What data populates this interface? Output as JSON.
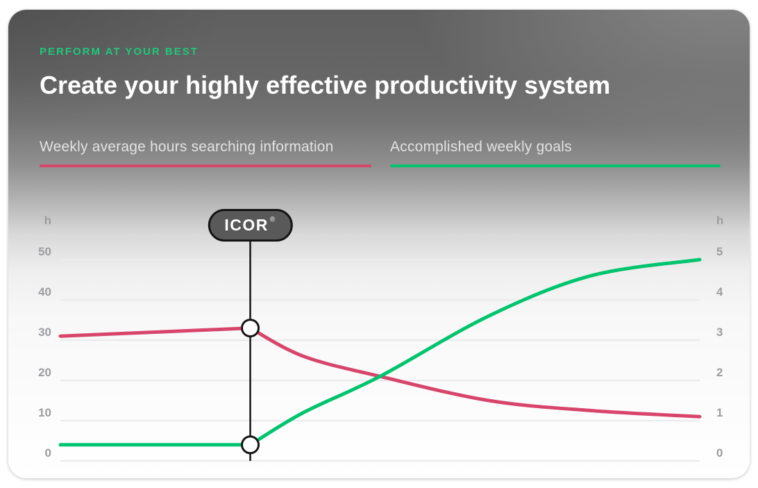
{
  "header": {
    "eyebrow": "PERFORM AT YOUR BEST",
    "title": "Create your highly effective productivity system"
  },
  "legend": {
    "items": [
      {
        "label": "Weekly average hours searching information",
        "color": "#d8456b"
      },
      {
        "label": "Accomplished weekly goals",
        "color": "#00c46e"
      }
    ]
  },
  "annotation": {
    "label": "ICOR",
    "registered": "®"
  },
  "colors": {
    "card_top": "#5f5f5f",
    "card_bottom": "#ffffff",
    "eyebrow": "#1ec87c",
    "title_text": "#ffffff",
    "legend_text": "#e2e2e2",
    "axis_text": "#9d9da1",
    "grid": "#ebebee",
    "line_searching": "#d8456b",
    "line_goals": "#00c46e",
    "annotation_line": "#151515",
    "marker_fill": "#ffffff",
    "badge_fill": "#595959",
    "badge_border": "#141414",
    "badge_text": "#ffffff"
  },
  "chart_data": {
    "type": "line",
    "title": "Create your highly effective productivity system",
    "left_axis": {
      "unit": "h",
      "ticks": [
        0,
        10,
        20,
        30,
        40,
        50
      ],
      "range": [
        0,
        50
      ]
    },
    "right_axis": {
      "unit": "h",
      "ticks": [
        0,
        1,
        2,
        3,
        4,
        5
      ],
      "range": [
        0,
        5
      ]
    },
    "xlabel": "",
    "grid": true,
    "legend_position": "top",
    "annotation": {
      "label": "ICOR®",
      "x": 0.297
    },
    "series": [
      {
        "name": "Weekly average hours searching information",
        "axis": "left",
        "color": "#d8456b",
        "corner_index": 1,
        "points": [
          [
            0,
            31
          ],
          [
            0.297,
            33
          ],
          [
            0.38,
            26
          ],
          [
            0.5,
            21
          ],
          [
            0.67,
            15
          ],
          [
            0.83,
            12.5
          ],
          [
            1,
            11
          ]
        ]
      },
      {
        "name": "Accomplished weekly goals",
        "axis": "left",
        "color": "#00c46e",
        "corner_index": 1,
        "points": [
          [
            0,
            4
          ],
          [
            0.297,
            4
          ],
          [
            0.38,
            12
          ],
          [
            0.5,
            21
          ],
          [
            0.67,
            36
          ],
          [
            0.83,
            46
          ],
          [
            1,
            50
          ]
        ]
      }
    ],
    "markers": [
      {
        "series": 0,
        "x": 0.297,
        "value": 33
      },
      {
        "series": 1,
        "x": 0.297,
        "value": 4
      }
    ]
  }
}
